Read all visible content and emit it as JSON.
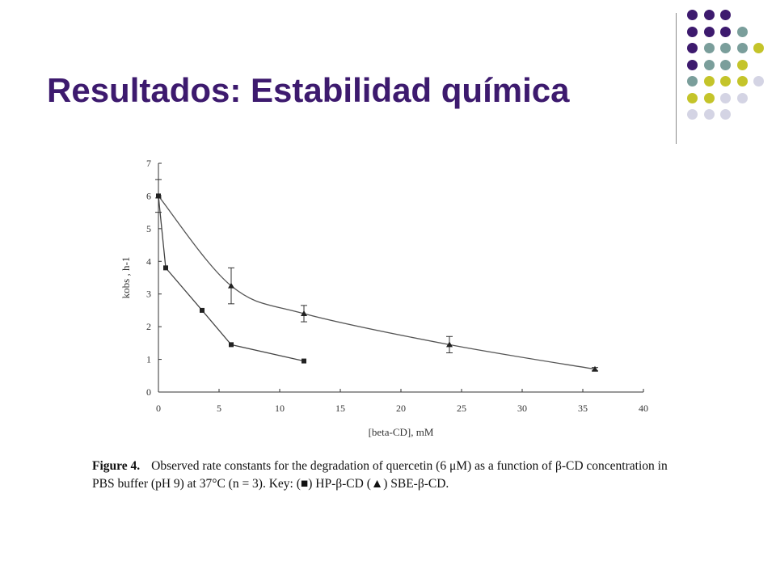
{
  "slide": {
    "title": "Resultados: Estabilidad química"
  },
  "decor": {
    "dot_rows": [
      [
        "#3d1a6e",
        "#3d1a6e",
        "#3d1a6e"
      ],
      [
        "#3d1a6e",
        "#3d1a6e",
        "#3d1a6e",
        "#7a9e9b"
      ],
      [
        "#3d1a6e",
        "#7a9e9b",
        "#7a9e9b",
        "#7a9e9b",
        "#c4c42a"
      ],
      [
        "#3d1a6e",
        "#7a9e9b",
        "#7a9e9b",
        "#c4c42a"
      ],
      [
        "#7a9e9b",
        "#c4c42a",
        "#c4c42a",
        "#c4c42a",
        "#d4d4e4"
      ],
      [
        "#c4c42a",
        "#c4c42a",
        "#d4d4e4",
        "#d4d4e4"
      ],
      [
        "#d4d4e4",
        "#d4d4e4",
        "#d4d4e4"
      ]
    ]
  },
  "chart_data": {
    "type": "scatter",
    "xlabel": "[beta-CD], mM",
    "ylabel": "kobs , h-1",
    "xlim": [
      0,
      40
    ],
    "ylim": [
      0,
      7
    ],
    "xticks": [
      0,
      5,
      10,
      15,
      20,
      25,
      30,
      35,
      40
    ],
    "yticks": [
      0,
      1,
      2,
      3,
      4,
      5,
      6,
      7
    ],
    "grid": false,
    "series": [
      {
        "marker": "square",
        "points": [
          {
            "x": 0,
            "y": 6.0
          },
          {
            "x": 0.6,
            "y": 3.8
          },
          {
            "x": 3.6,
            "y": 2.5
          },
          {
            "x": 6.0,
            "y": 1.45
          },
          {
            "x": 12.0,
            "y": 0.95
          }
        ]
      },
      {
        "marker": "triangle",
        "points": [
          {
            "x": 0,
            "y": 6.0,
            "err": 0.5
          },
          {
            "x": 6.0,
            "y": 3.25,
            "err": 0.55
          },
          {
            "x": 12.0,
            "y": 2.4,
            "err": 0.25
          },
          {
            "x": 24.0,
            "y": 1.45,
            "err": 0.25
          },
          {
            "x": 36.0,
            "y": 0.7,
            "err": 0.05
          }
        ]
      }
    ]
  },
  "caption": {
    "label": "Figure 4.",
    "text": "Observed rate constants for the degradation of quercetin (6 μM) as a function of β-CD concentration in PBS buffer (pH 9) at 37°C (n = 3). Key: (■) HP-β-CD (▲) SBE-β-CD."
  }
}
